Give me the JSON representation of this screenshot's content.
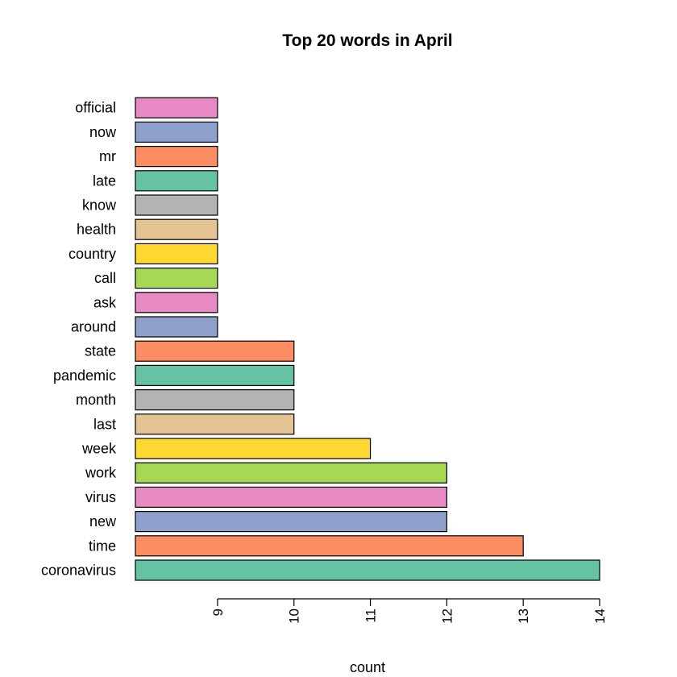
{
  "chart_data": {
    "type": "bar",
    "orientation": "horizontal",
    "title": "Top 20 words in April",
    "xlabel": "count",
    "ylabel": "",
    "categories": [
      "coronavirus",
      "time",
      "new",
      "virus",
      "work",
      "week",
      "last",
      "month",
      "pandemic",
      "state",
      "around",
      "ask",
      "call",
      "country",
      "health",
      "know",
      "late",
      "mr",
      "now",
      "official"
    ],
    "values": [
      14,
      13,
      12,
      12,
      12,
      11,
      10,
      10,
      10,
      10,
      9,
      9,
      9,
      9,
      9,
      9,
      9,
      9,
      9,
      9
    ],
    "colors": [
      "#66C2A5",
      "#FC8D62",
      "#8DA0CB",
      "#E78AC3",
      "#A6D854",
      "#FFD92F",
      "#E5C494",
      "#B3B3B3",
      "#66C2A5",
      "#FC8D62",
      "#8DA0CB",
      "#E78AC3",
      "#A6D854",
      "#FFD92F",
      "#E5C494",
      "#B3B3B3",
      "#66C2A5",
      "#FC8D62",
      "#8DA0CB",
      "#E78AC3"
    ],
    "xlim": [
      7.925,
      14
    ],
    "xticks": [
      9,
      10,
      11,
      12,
      13,
      14
    ],
    "grid": false,
    "legend": "none"
  }
}
